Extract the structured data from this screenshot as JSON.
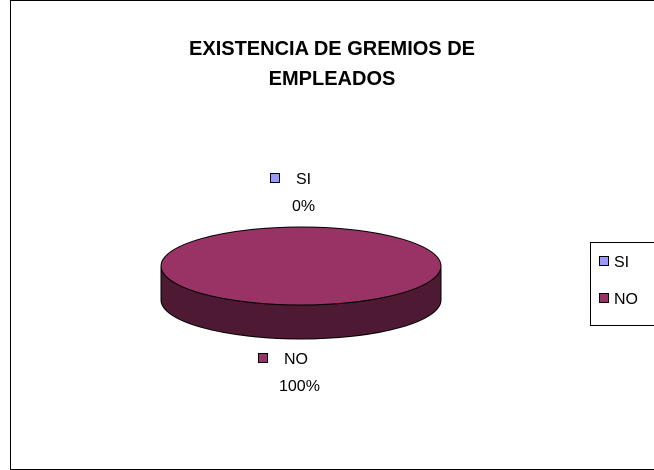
{
  "chart_data": {
    "type": "pie",
    "title": "EXISTENCIA DE GREMIOS DE EMPLEADOS",
    "title_lines": [
      "EXISTENCIA DE GREMIOS DE",
      "EMPLEADOS"
    ],
    "three_d": true,
    "categories": [
      "SI",
      "NO"
    ],
    "values": [
      0,
      100
    ],
    "value_labels": [
      "0%",
      "100%"
    ],
    "legend": {
      "placement": "right",
      "entries": [
        "SI",
        "NO"
      ]
    },
    "colors": {
      "SI": "#9999FF",
      "NO": "#993366",
      "NO_side": "#4D1933"
    }
  }
}
